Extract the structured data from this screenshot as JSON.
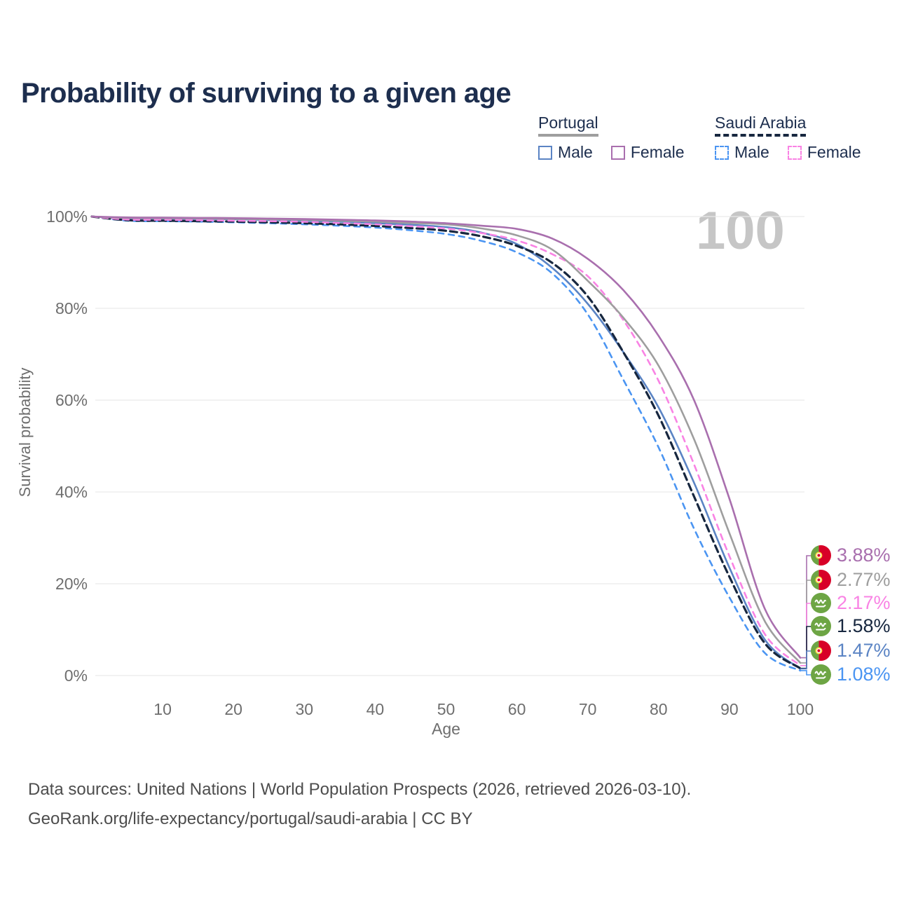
{
  "title": "Probability of surviving to a given age",
  "watermark": "100",
  "colors": {
    "title_text": "#1d2e4e",
    "axis_text": "#6e6e6e",
    "gridline": "#e9e9e9",
    "watermark": "#c6c6c6",
    "footer_text": "#4d4d4d",
    "portugal_male": "#5b84c4",
    "portugal_female": "#a96fae",
    "portugal_both": "#9e9e9e",
    "saudi_male": "#4b95f2",
    "saudi_female": "#f983e4",
    "saudi_both": "#17273f"
  },
  "legend": {
    "groups": [
      {
        "name": "Portugal",
        "underline_style": "solid",
        "items": [
          {
            "label": "Male",
            "color": "#5b84c4",
            "dashed": false
          },
          {
            "label": "Female",
            "color": "#a96fae",
            "dashed": false
          }
        ]
      },
      {
        "name": "Saudi Arabia",
        "underline_style": "dashed",
        "items": [
          {
            "label": "Male",
            "color": "#4b95f2",
            "dashed": true
          },
          {
            "label": "Female",
            "color": "#f983e4",
            "dashed": true
          }
        ]
      }
    ]
  },
  "chart_data": {
    "type": "line",
    "title": "Probability of surviving to a given age",
    "xlabel": "Age",
    "ylabel": "Survival probability",
    "xlim": [
      0,
      100
    ],
    "ylim": [
      0,
      100
    ],
    "grid": true,
    "x_ticks": [
      10,
      20,
      30,
      40,
      50,
      60,
      70,
      80,
      90,
      100
    ],
    "y_ticks": [
      {
        "value": 0,
        "label": "0%"
      },
      {
        "value": 20,
        "label": "20%"
      },
      {
        "value": 40,
        "label": "40%"
      },
      {
        "value": 60,
        "label": "60%"
      },
      {
        "value": 80,
        "label": "80%"
      },
      {
        "value": 100,
        "label": "100%"
      }
    ],
    "x": [
      0,
      5,
      10,
      15,
      20,
      25,
      30,
      35,
      40,
      45,
      50,
      55,
      60,
      65,
      70,
      75,
      80,
      85,
      90,
      95,
      100
    ],
    "series": [
      {
        "name": "Portugal Female",
        "country": "portugal",
        "sex": "female",
        "color": "#a96fae",
        "dashed": false,
        "values": [
          100,
          99.8,
          99.75,
          99.7,
          99.65,
          99.55,
          99.45,
          99.3,
          99.15,
          98.9,
          98.55,
          98.0,
          97.3,
          95.2,
          90.8,
          84.0,
          74.0,
          60.0,
          38.5,
          14.5,
          3.88
        ],
        "end_label": "3.88%",
        "flag": "portugal"
      },
      {
        "name": "Portugal Both sexes",
        "country": "portugal",
        "sex": "both",
        "color": "#9e9e9e",
        "dashed": false,
        "values": [
          100,
          99.7,
          99.65,
          99.6,
          99.5,
          99.4,
          99.3,
          99.1,
          98.9,
          98.6,
          98.3,
          97.4,
          95.9,
          92.8,
          86.0,
          78.0,
          67.5,
          51.5,
          31.0,
          11.8,
          2.77
        ],
        "end_label": "2.77%",
        "flag": "portugal"
      },
      {
        "name": "Saudi Arabia Female",
        "country": "saudi-arabia",
        "sex": "female",
        "color": "#f983e4",
        "dashed": true,
        "values": [
          100,
          99.35,
          99.3,
          99.2,
          99.1,
          99.0,
          98.85,
          98.6,
          98.3,
          97.9,
          97.4,
          96.4,
          94.8,
          91.8,
          87.0,
          77.5,
          64.2,
          46.0,
          26.0,
          9.0,
          2.17
        ],
        "end_label": "2.17%",
        "flag": "saudi-arabia"
      },
      {
        "name": "Saudi Arabia Both sexes",
        "country": "saudi-arabia",
        "sex": "both",
        "color": "#17273f",
        "dashed": true,
        "values": [
          100,
          99.2,
          99.1,
          99.0,
          98.9,
          98.75,
          98.55,
          98.3,
          97.95,
          97.5,
          96.9,
          95.7,
          93.6,
          89.9,
          82.6,
          70.5,
          56.6,
          39.0,
          21.5,
          7.0,
          1.58
        ],
        "end_label": "1.58%",
        "flag": "saudi-arabia"
      },
      {
        "name": "Portugal Male",
        "country": "portugal",
        "sex": "male",
        "color": "#5b84c4",
        "dashed": false,
        "values": [
          100,
          99.6,
          99.55,
          99.5,
          99.4,
          99.25,
          99.05,
          98.85,
          98.55,
          98.2,
          97.7,
          96.5,
          94.0,
          88.8,
          81.0,
          70.5,
          58.4,
          42.0,
          23.5,
          7.8,
          1.47
        ],
        "end_label": "1.47%",
        "flag": "portugal"
      },
      {
        "name": "Saudi Arabia Male",
        "country": "saudi-arabia",
        "sex": "male",
        "color": "#4b95f2",
        "dashed": true,
        "values": [
          100,
          99.1,
          99.0,
          98.9,
          98.75,
          98.55,
          98.3,
          98.0,
          97.6,
          97.0,
          96.2,
          94.7,
          92.2,
          87.6,
          78.7,
          64.5,
          49.7,
          32.0,
          17.0,
          4.9,
          1.08
        ],
        "end_label": "1.08%",
        "flag": "saudi-arabia"
      }
    ],
    "legend_position": "top-right"
  },
  "footer": {
    "line1": "Data sources: United Nations | World Population Prospects (2026, retrieved 2026-03-10).",
    "line2": "GeoRank.org/life-expectancy/portugal/saudi-arabia | CC BY"
  }
}
